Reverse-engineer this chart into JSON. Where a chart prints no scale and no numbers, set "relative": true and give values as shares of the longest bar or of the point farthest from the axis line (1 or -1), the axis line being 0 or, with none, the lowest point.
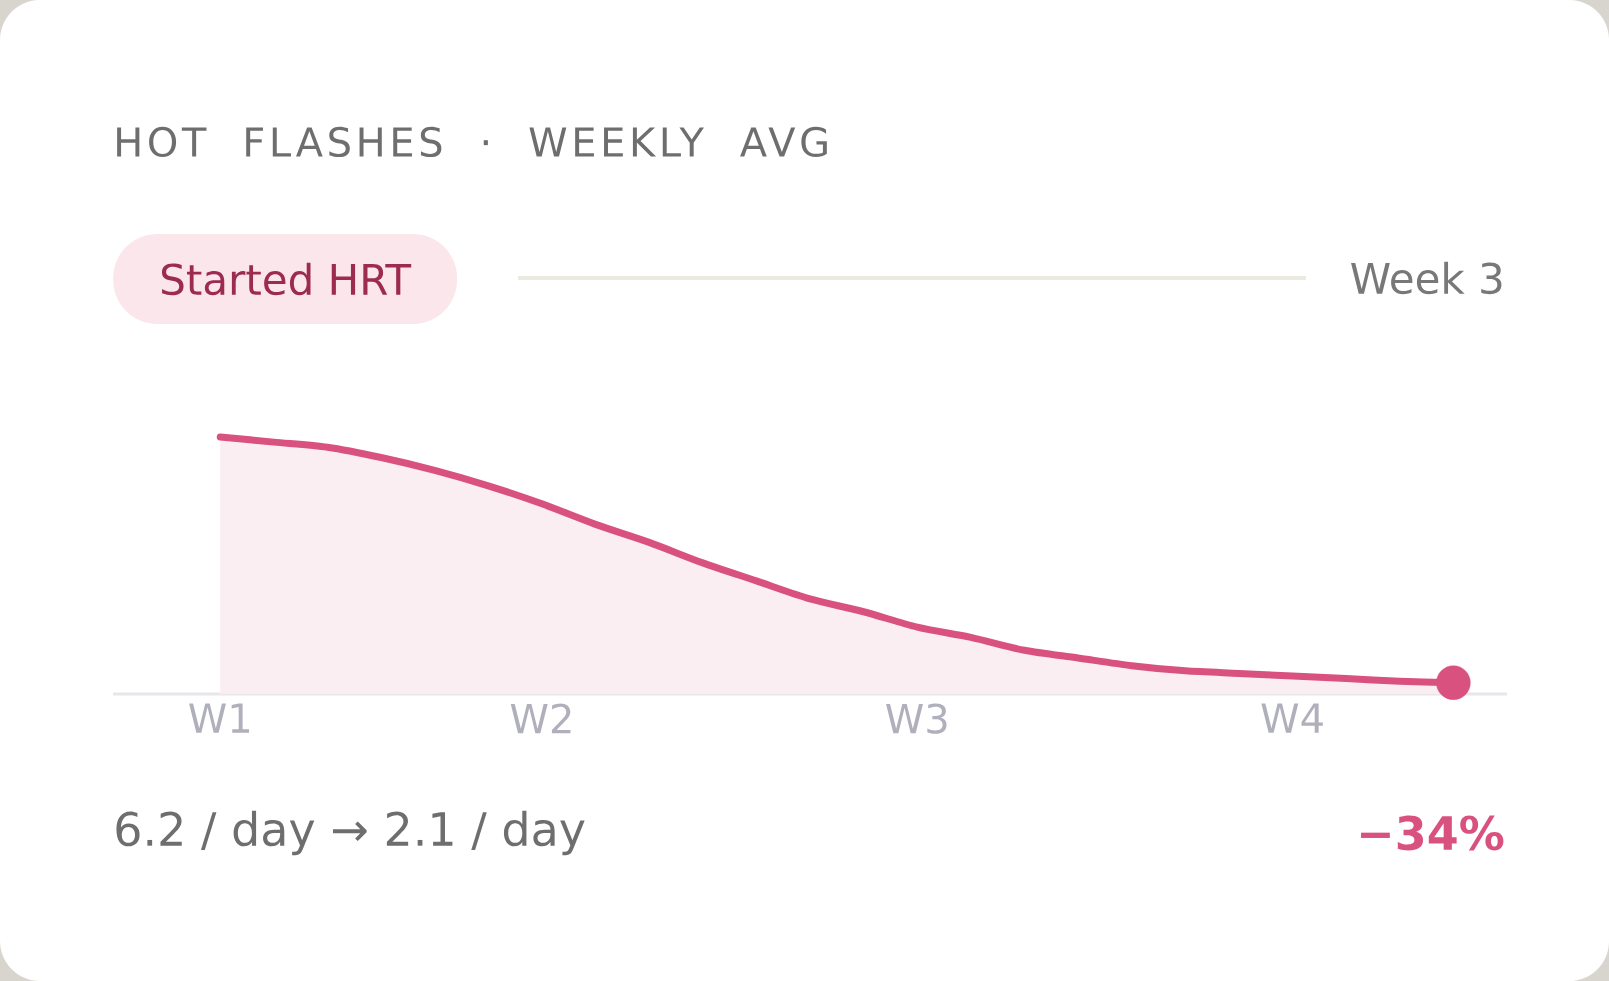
{
  "chart_data": {
    "type": "area",
    "title": "HOT FLASHES · WEEKLY AVG",
    "relative": true,
    "categories": [
      "W1",
      null,
      null,
      null,
      null,
      null,
      "W2",
      null,
      null,
      null,
      null,
      null,
      null,
      "W3",
      null,
      null,
      null,
      null,
      null,
      null,
      "W4",
      null,
      null,
      null
    ],
    "series": [
      {
        "color": "#d9527f",
        "values": [
          1,
          0.98,
          0.96,
          0.92,
          0.87,
          0.81,
          0.74,
          0.66,
          0.59,
          0.51,
          0.44,
          0.37,
          0.32,
          0.26,
          0.22,
          0.17,
          0.14,
          0.11,
          0.09,
          0.08,
          0.07,
          0.06,
          0.05,
          0.044
        ]
      },
      {
        "type": "scatter",
        "color": "#d9527f",
        "values": [
          null,
          null,
          null,
          null,
          null,
          null,
          null,
          null,
          null,
          null,
          null,
          null,
          null,
          null,
          null,
          null,
          null,
          null,
          null,
          null,
          null,
          null,
          null,
          0.044
        ]
      }
    ],
    "annotations": [
      "Started HRT",
      "Week 3",
      "6.2 / day → 2.1 / day",
      "−34%"
    ]
  }
}
